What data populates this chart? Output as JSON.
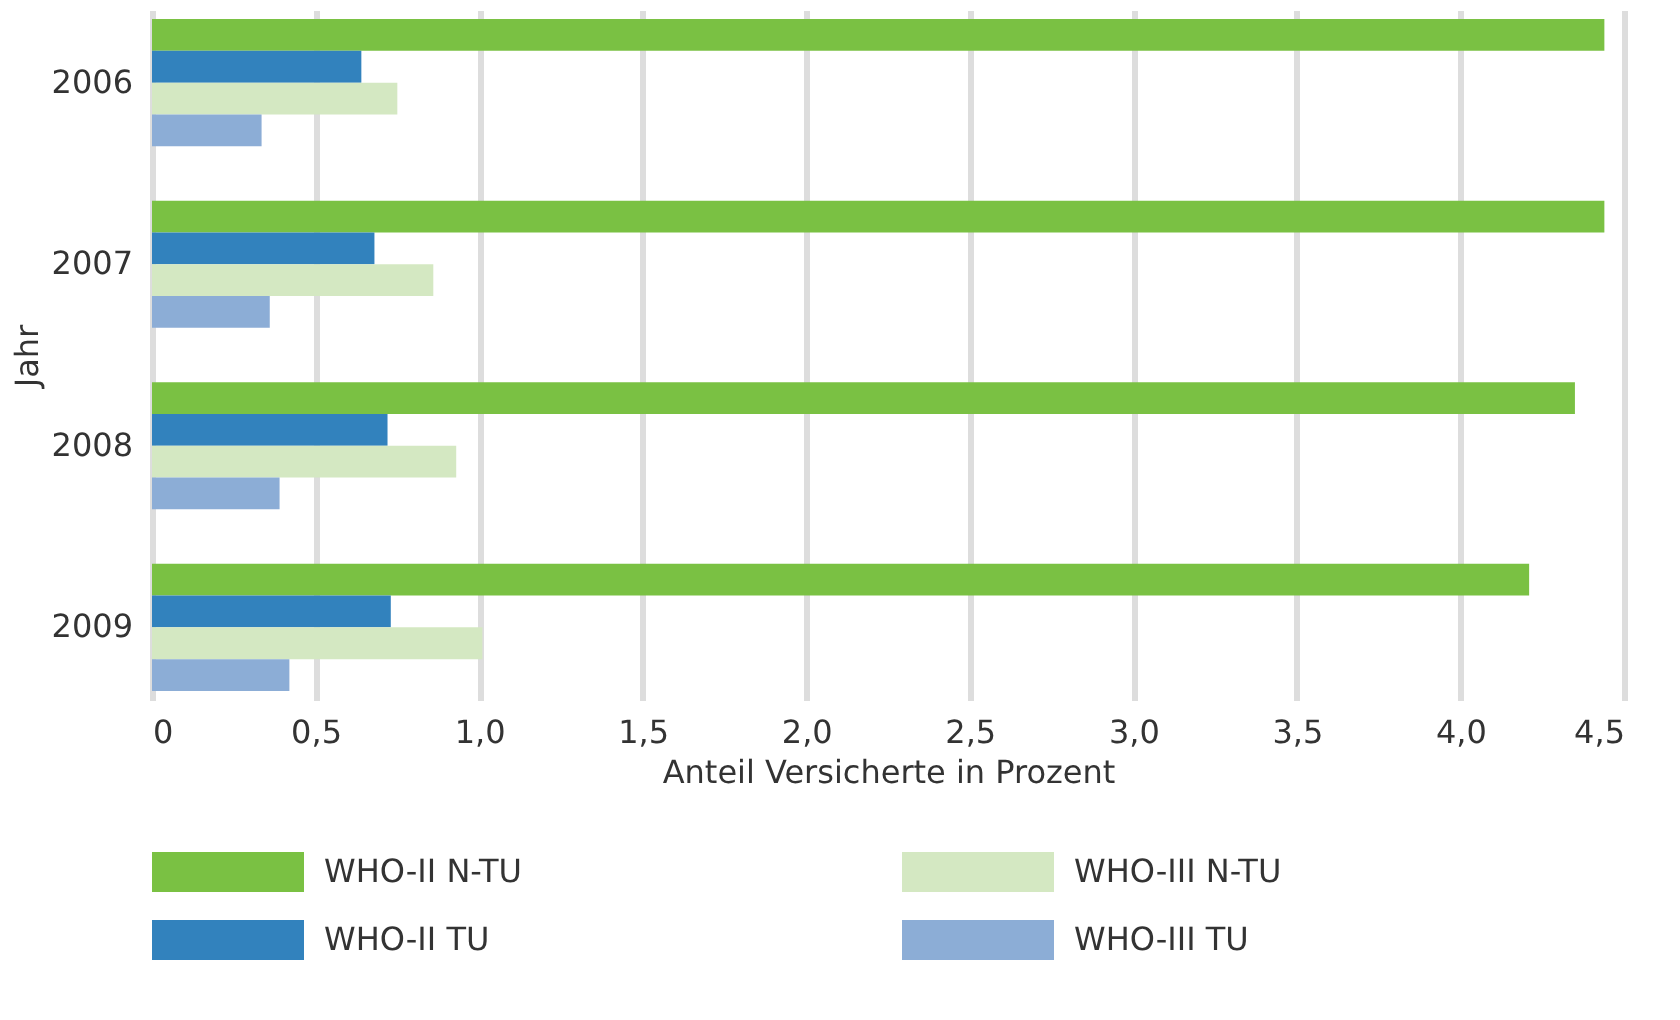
{
  "chart_data": {
    "type": "bar",
    "orientation": "horizontal",
    "xlabel": "Anteil Versicherte in Prozent",
    "ylabel": "Jahr",
    "categories": [
      "2006",
      "2007",
      "2008",
      "2009"
    ],
    "series": [
      {
        "name": "WHO-II N-TU",
        "color": "#7ac143",
        "values": [
          4.44,
          4.44,
          4.35,
          4.21
        ]
      },
      {
        "name": "WHO-II TU",
        "color": "#3282bd",
        "values": [
          0.64,
          0.68,
          0.72,
          0.73
        ]
      },
      {
        "name": "WHO-III N-TU",
        "color": "#d4e8c2",
        "values": [
          0.75,
          0.86,
          0.93,
          1.01
        ]
      },
      {
        "name": "WHO-III TU",
        "color": "#8cadd6",
        "values": [
          0.335,
          0.36,
          0.39,
          0.42
        ]
      }
    ],
    "xlim": [
      0,
      4.5
    ],
    "xticks": [
      0,
      {
        "value": 0.5,
        "label": "0,5"
      },
      {
        "value": 1,
        "label": "1,0"
      },
      {
        "value": 1.5,
        "label": "1,5"
      },
      {
        "value": 2,
        "label": "2,0"
      },
      {
        "value": 2.5,
        "label": "2,5"
      },
      {
        "value": 3,
        "label": "3,0"
      },
      {
        "value": 3.5,
        "label": "3,5"
      },
      {
        "value": 4,
        "label": "4,0"
      },
      {
        "value": 4.5,
        "label": "4,5"
      }
    ],
    "grid": "x",
    "legend": "bottom"
  }
}
